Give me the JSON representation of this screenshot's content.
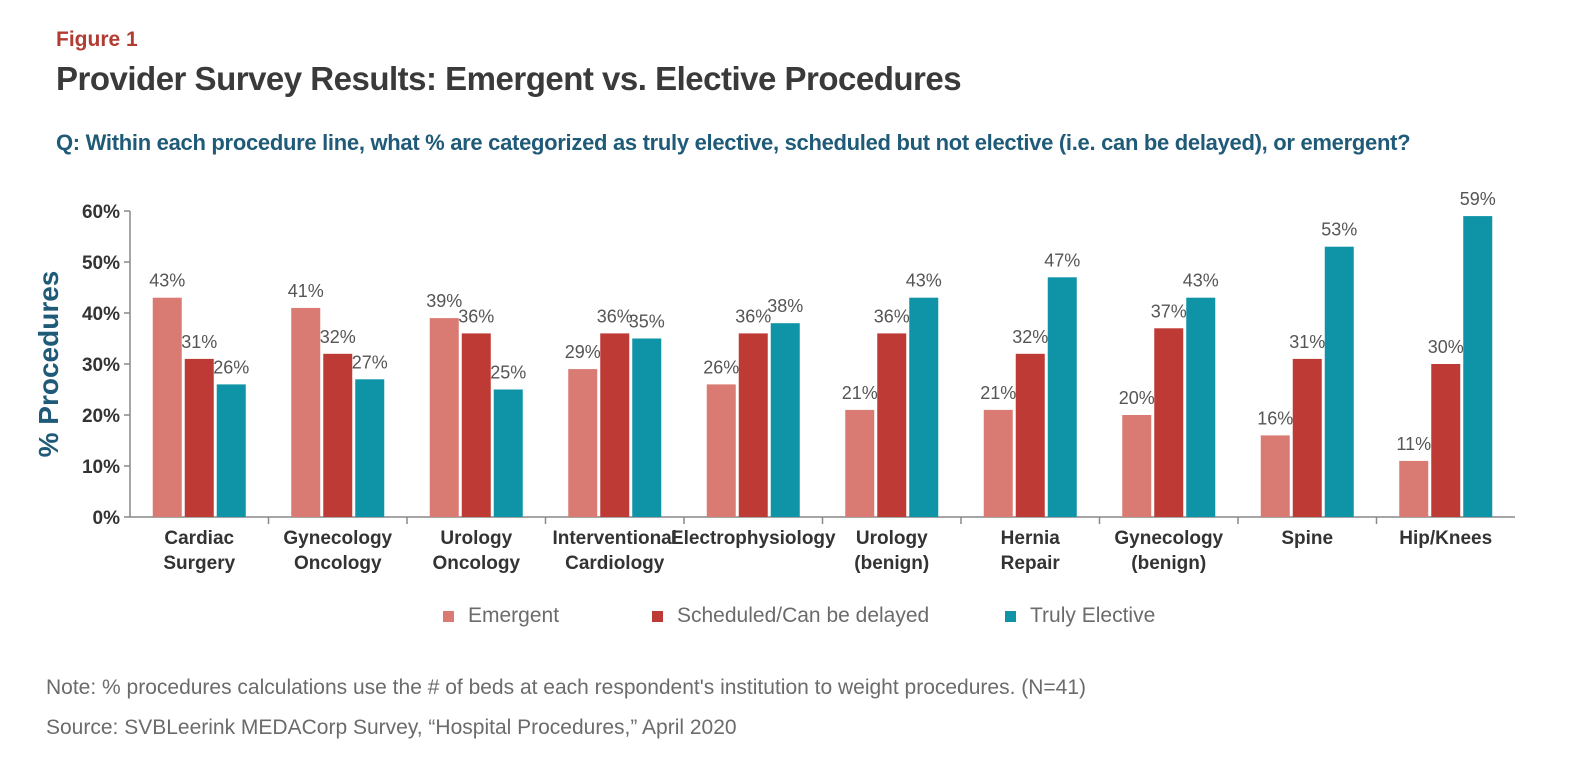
{
  "figure_label": "Figure 1",
  "title": "Provider Survey Results: Emergent vs. Elective Procedures",
  "question": "Q: Within each procedure line, what % are categorized as truly elective, scheduled but not elective (i.e. can be delayed), or emergent?",
  "note": "Note: % procedures calculations use the # of beds at each respondent's institution to weight procedures. (N=41)",
  "source": "Source: SVBLeerink MEDACorp Survey, “Hospital Procedures,” April 2020",
  "chart_data": {
    "type": "bar",
    "ylabel": "% Procedures",
    "ylim": [
      0,
      60
    ],
    "yticks": [
      "0%",
      "10%",
      "20%",
      "30%",
      "40%",
      "50%",
      "60%"
    ],
    "categories": [
      [
        "Cardiac",
        "Surgery"
      ],
      [
        "Gynecology",
        "Oncology"
      ],
      [
        "Urology",
        "Oncology"
      ],
      [
        "Interventional",
        "Cardiology"
      ],
      [
        "Electrophysiology"
      ],
      [
        "Urology",
        "(benign)"
      ],
      [
        "Hernia",
        "Repair"
      ],
      [
        "Gynecology",
        "(benign)"
      ],
      [
        "Spine"
      ],
      [
        "Hip/Knees"
      ]
    ],
    "series": [
      {
        "name": "Emergent",
        "color": "#d97b72",
        "values": [
          43,
          41,
          39,
          29,
          26,
          21,
          21,
          20,
          16,
          11
        ]
      },
      {
        "name": "Scheduled/Can be delayed",
        "color": "#be3a35",
        "values": [
          31,
          32,
          36,
          36,
          36,
          36,
          32,
          37,
          31,
          30
        ]
      },
      {
        "name": "Truly Elective",
        "color": "#0f93a7",
        "values": [
          26,
          27,
          25,
          35,
          38,
          43,
          47,
          43,
          53,
          59
        ]
      }
    ],
    "legend_position": "bottom",
    "grid": false
  }
}
